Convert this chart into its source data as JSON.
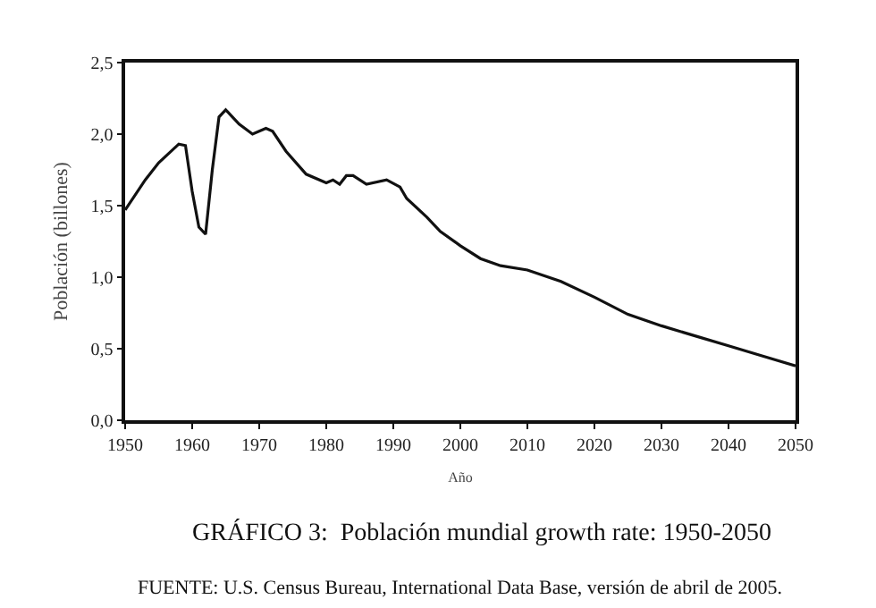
{
  "chart_data": {
    "type": "line",
    "title": "GRÁFICO 3:  Población mundial growth rate: 1950-2050",
    "xlabel": "Año",
    "ylabel": "Población (billones)",
    "x": [
      1950,
      1953,
      1955,
      1958,
      1959,
      1960,
      1961,
      1962,
      1963,
      1964,
      1965,
      1967,
      1969,
      1971,
      1972,
      1974,
      1977,
      1980,
      1981,
      1982,
      1983,
      1984,
      1986,
      1989,
      1991,
      1992,
      1995,
      1997,
      2000,
      2003,
      2006,
      2010,
      2015,
      2020,
      2025,
      2030,
      2035,
      2040,
      2045,
      2050
    ],
    "series": [
      {
        "color": "#111111",
        "values": [
          1.47,
          1.68,
          1.8,
          1.93,
          1.92,
          1.6,
          1.35,
          1.3,
          1.75,
          2.12,
          2.17,
          2.07,
          2.0,
          2.04,
          2.02,
          1.88,
          1.72,
          1.66,
          1.68,
          1.65,
          1.71,
          1.71,
          1.65,
          1.68,
          1.63,
          1.55,
          1.42,
          1.32,
          1.22,
          1.13,
          1.08,
          1.05,
          0.97,
          0.86,
          0.74,
          0.66,
          0.59,
          0.52,
          0.45,
          0.38
        ]
      }
    ],
    "xlim": [
      1950,
      2050
    ],
    "xticks": [
      1950,
      1960,
      1970,
      1980,
      1990,
      2000,
      2010,
      2020,
      2030,
      2040,
      2050
    ],
    "ylim": [
      0,
      2.5
    ],
    "yticks": [
      {
        "value": 0,
        "label": "0,0"
      },
      {
        "value": 0.5,
        "label": "0,5"
      },
      {
        "value": 1,
        "label": "1,0"
      },
      {
        "value": 1.5,
        "label": "1,5"
      },
      {
        "value": 2,
        "label": "2,0"
      },
      {
        "value": 2.5,
        "label": "2,5"
      }
    ],
    "grid": false,
    "legend": false,
    "marker": "none",
    "line_style": "solid",
    "annotations": [
      "FUENTE: U.S. Census Bureau, International Data Base, versión de abril de 2005."
    ]
  }
}
